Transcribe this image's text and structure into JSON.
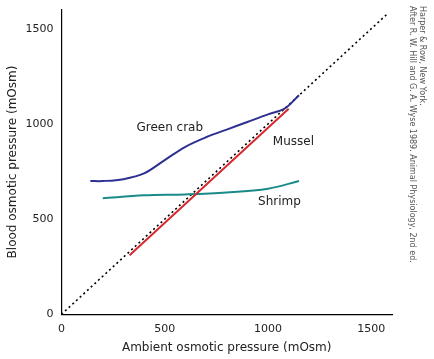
{
  "chart_data": {
    "type": "line",
    "x_label": "Ambient osmotic pressure (mOsm)",
    "y_label": "Blood osmotic pressure (mOsm)",
    "source": [
      "After R. W. Hill and G. A. Wyse 1989. Animal Physiology, 2nd ed.",
      "Harper & Row, New York."
    ],
    "xlim": [
      0,
      1600
    ],
    "xticks": [
      0,
      500,
      1000,
      1500
    ],
    "ylim": [
      0,
      1600
    ],
    "yticks": [
      0,
      500,
      1000,
      1500
    ],
    "grid": false,
    "series": [
      {
        "name": "Green crab",
        "color": "#2e3192",
        "line_style": "solid",
        "marker": "none",
        "x": [
          140,
          200,
          300,
          400,
          500,
          600,
          700,
          800,
          900,
          1000,
          1080,
          1150
        ],
        "values": [
          700,
          700,
          710,
          740,
          810,
          880,
          930,
          970,
          1010,
          1050,
          1080,
          1150
        ]
      },
      {
        "name": "Mussel",
        "color": "#d6282d",
        "line_style": "solid",
        "marker": "none",
        "x": [
          330,
          1100
        ],
        "values": [
          310,
          1080
        ]
      },
      {
        "name": "Shrimp",
        "color": "#1a8a8a",
        "line_style": "solid",
        "marker": "none",
        "x": [
          200,
          400,
          600,
          800,
          1000,
          1150
        ],
        "values": [
          610,
          625,
          630,
          640,
          660,
          700
        ]
      },
      {
        "color": "#000000",
        "line_style": "dotted",
        "marker": "none",
        "x": [
          0,
          1580
        ],
        "values": [
          0,
          1580
        ]
      }
    ]
  }
}
